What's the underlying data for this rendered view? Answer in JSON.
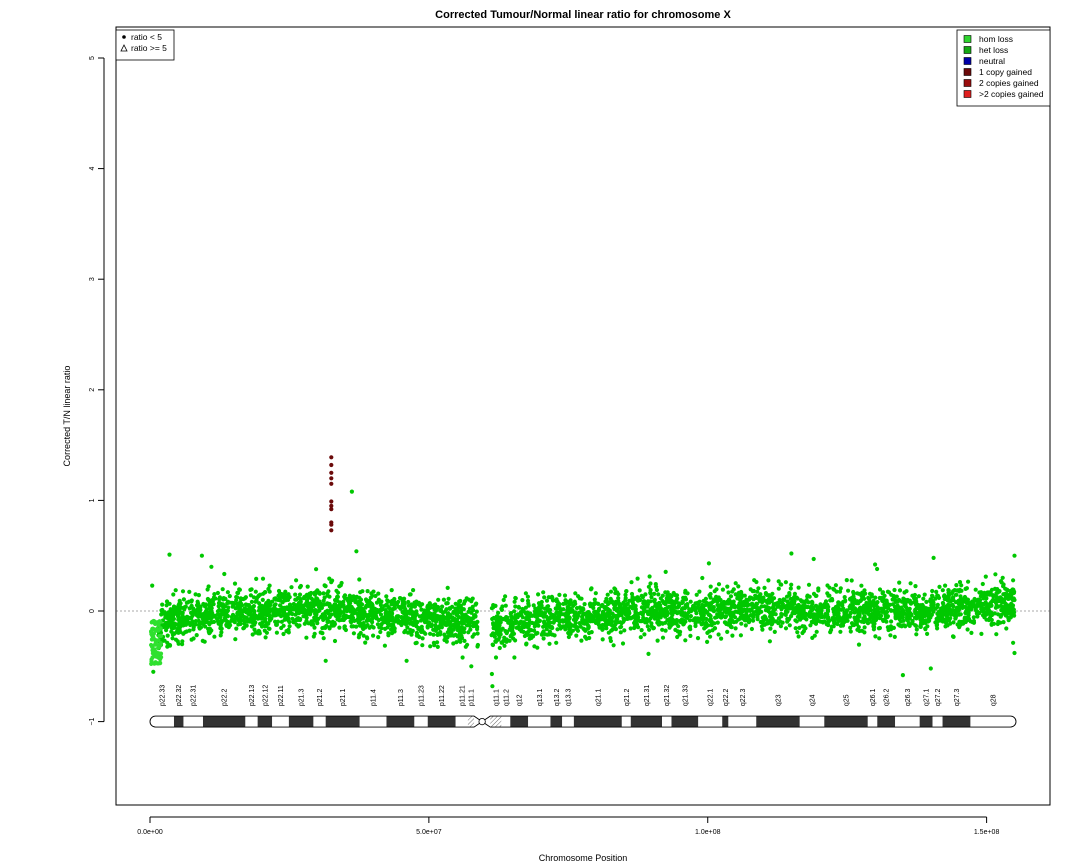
{
  "chart_data": {
    "type": "scatter",
    "title": "Corrected Tumour/Normal linear ratio for chromosome  X",
    "xlabel": "Chromosome Position",
    "ylabel": "Corrected T/N linear ratio",
    "xlim": [
      0,
      155270560
    ],
    "ylim": [
      -1.75,
      5.35
    ],
    "x_ticks": [
      0,
      50000000,
      100000000,
      150000000
    ],
    "x_tick_labels": [
      "0.0e+00",
      "5.0e+07",
      "1.0e+08",
      "1.5e+08"
    ],
    "y_ticks": [
      -1,
      0,
      1,
      2,
      3,
      4,
      5
    ],
    "y_tick_labels": [
      "−1",
      "0",
      "1",
      "2",
      "3",
      "4",
      "5"
    ],
    "reference_line_y": 0,
    "grid": false,
    "shape_legend": {
      "position": "top-left",
      "entries": [
        {
          "symbol": "dot",
          "label": "ratio < 5"
        },
        {
          "symbol": "triangle",
          "label": "ratio >= 5"
        }
      ]
    },
    "legend": {
      "position": "top-right",
      "entries": [
        {
          "label": "hom loss",
          "color": "#2fd42f"
        },
        {
          "label": "het loss",
          "color": "#14a814"
        },
        {
          "label": "neutral",
          "color": "#0000a8"
        },
        {
          "label": "1 copy gained",
          "color": "#6b0a0a"
        },
        {
          "label": "2 copies gained",
          "color": "#9a0d0d"
        },
        {
          "label": ">2 copies gained",
          "color": "#e01f1f"
        }
      ]
    },
    "series": [
      {
        "category": "het loss",
        "color": "#00c800",
        "trend": [
          [
            0,
            -0.35
          ],
          [
            1000000,
            -0.3
          ],
          [
            2000000,
            -0.15
          ],
          [
            3000000,
            -0.1
          ],
          [
            8000000,
            -0.05
          ],
          [
            14000000,
            0.0
          ],
          [
            20000000,
            0.0
          ],
          [
            26000000,
            0.02
          ],
          [
            32000000,
            0.02
          ],
          [
            36000000,
            0.0
          ],
          [
            42000000,
            -0.05
          ],
          [
            48000000,
            -0.05
          ],
          [
            54000000,
            -0.08
          ],
          [
            58000000,
            -0.1
          ],
          [
            62000000,
            -0.15
          ],
          [
            66000000,
            -0.1
          ],
          [
            72000000,
            -0.05
          ],
          [
            80000000,
            -0.05
          ],
          [
            90000000,
            0.0
          ],
          [
            100000000,
            0.0
          ],
          [
            110000000,
            0.02
          ],
          [
            120000000,
            0.0
          ],
          [
            130000000,
            0.0
          ],
          [
            140000000,
            0.0
          ],
          [
            150000000,
            0.05
          ],
          [
            155000000,
            0.08
          ]
        ],
        "spread": 0.1,
        "gaps": [
          [
            58800000,
            61200000
          ]
        ],
        "outliers": [
          [
            400000,
            0.23
          ],
          [
            600000,
            -0.55
          ],
          [
            3500000,
            0.51
          ],
          [
            9300000,
            0.5
          ],
          [
            11000000,
            0.4
          ],
          [
            36200000,
            1.08
          ],
          [
            37000000,
            0.54
          ],
          [
            46000000,
            -0.45
          ],
          [
            31500000,
            -0.45
          ],
          [
            57600000,
            -0.5
          ],
          [
            61300000,
            -0.57
          ],
          [
            61400000,
            -0.68
          ],
          [
            100200000,
            0.43
          ],
          [
            115000000,
            0.52
          ],
          [
            119000000,
            0.47
          ],
          [
            130000000,
            0.42
          ],
          [
            135000000,
            -0.58
          ],
          [
            140000000,
            -0.52
          ],
          [
            140500000,
            0.48
          ],
          [
            155000000,
            0.5
          ],
          [
            155000000,
            -0.38
          ]
        ]
      },
      {
        "category": "hom loss",
        "color": "#2fe02f",
        "x_range": [
          50000,
          2000000
        ],
        "y_range": [
          -0.48,
          -0.08
        ]
      },
      {
        "category": "1 copy gained",
        "color": "#6b0a0a",
        "points": [
          [
            32500000,
            1.39
          ],
          [
            32500000,
            1.32
          ],
          [
            32500000,
            1.25
          ],
          [
            32500000,
            1.2
          ],
          [
            32500000,
            1.15
          ],
          [
            32500000,
            0.99
          ],
          [
            32500000,
            0.95
          ],
          [
            32500000,
            0.92
          ],
          [
            32500000,
            0.8
          ],
          [
            32500000,
            0.78
          ],
          [
            32500000,
            0.73
          ]
        ]
      }
    ],
    "ideogram": {
      "y": -1,
      "centromere": [
        58100000,
        61000000
      ],
      "bands": [
        {
          "name": "p22.33",
          "start": 0,
          "end": 4300000,
          "stain": "white"
        },
        {
          "name": "p22.32",
          "start": 4300000,
          "end": 6000000,
          "stain": "dark"
        },
        {
          "name": "p22.31",
          "start": 6000000,
          "end": 9500000,
          "stain": "white"
        },
        {
          "name": "p22.2",
          "start": 9500000,
          "end": 17100000,
          "stain": "dark"
        },
        {
          "name": "p22.13",
          "start": 17100000,
          "end": 19300000,
          "stain": "white"
        },
        {
          "name": "p22.12",
          "start": 19300000,
          "end": 21900000,
          "stain": "dark"
        },
        {
          "name": "p22.11",
          "start": 21900000,
          "end": 24900000,
          "stain": "white"
        },
        {
          "name": "p21.3",
          "start": 24900000,
          "end": 29300000,
          "stain": "dark"
        },
        {
          "name": "p21.2",
          "start": 29300000,
          "end": 31500000,
          "stain": "white"
        },
        {
          "name": "p21.1",
          "start": 31500000,
          "end": 37600000,
          "stain": "dark"
        },
        {
          "name": "p11.4",
          "start": 37600000,
          "end": 42400000,
          "stain": "white"
        },
        {
          "name": "p11.3",
          "start": 42400000,
          "end": 47400000,
          "stain": "dark"
        },
        {
          "name": "p11.23",
          "start": 47400000,
          "end": 49800000,
          "stain": "white"
        },
        {
          "name": "p11.22",
          "start": 49800000,
          "end": 54800000,
          "stain": "dark"
        },
        {
          "name": "p11.21",
          "start": 54800000,
          "end": 57000000,
          "stain": "white"
        },
        {
          "name": "p11.1",
          "start": 57000000,
          "end": 58100000,
          "stain": "stripe"
        },
        {
          "name": "q11.1",
          "start": 61000000,
          "end": 63000000,
          "stain": "stripe"
        },
        {
          "name": "q11.2",
          "start": 63000000,
          "end": 64600000,
          "stain": "white"
        },
        {
          "name": "q12",
          "start": 64600000,
          "end": 67800000,
          "stain": "dark"
        },
        {
          "name": "q13.1",
          "start": 67800000,
          "end": 71800000,
          "stain": "white"
        },
        {
          "name": "q13.2",
          "start": 71800000,
          "end": 73900000,
          "stain": "dark"
        },
        {
          "name": "q13.3",
          "start": 73900000,
          "end": 76000000,
          "stain": "white"
        },
        {
          "name": "q21.1",
          "start": 76000000,
          "end": 84600000,
          "stain": "dark"
        },
        {
          "name": "q21.2",
          "start": 84600000,
          "end": 86200000,
          "stain": "white"
        },
        {
          "name": "q21.31",
          "start": 86200000,
          "end": 91800000,
          "stain": "dark"
        },
        {
          "name": "q21.32",
          "start": 91800000,
          "end": 93500000,
          "stain": "white"
        },
        {
          "name": "q21.33",
          "start": 93500000,
          "end": 98300000,
          "stain": "dark"
        },
        {
          "name": "q22.1",
          "start": 98300000,
          "end": 102600000,
          "stain": "white"
        },
        {
          "name": "q22.2",
          "start": 102600000,
          "end": 103700000,
          "stain": "dark"
        },
        {
          "name": "q22.3",
          "start": 103700000,
          "end": 108700000,
          "stain": "white"
        },
        {
          "name": "q23",
          "start": 108700000,
          "end": 116500000,
          "stain": "dark"
        },
        {
          "name": "q24",
          "start": 116500000,
          "end": 120900000,
          "stain": "white"
        },
        {
          "name": "q25",
          "start": 120900000,
          "end": 128700000,
          "stain": "dark"
        },
        {
          "name": "q26.1",
          "start": 128700000,
          "end": 130400000,
          "stain": "white"
        },
        {
          "name": "q26.2",
          "start": 130400000,
          "end": 133600000,
          "stain": "dark"
        },
        {
          "name": "q26.3",
          "start": 133600000,
          "end": 138000000,
          "stain": "white"
        },
        {
          "name": "q27.1",
          "start": 138000000,
          "end": 140300000,
          "stain": "dark"
        },
        {
          "name": "q27.2",
          "start": 140300000,
          "end": 142100000,
          "stain": "white"
        },
        {
          "name": "q27.3",
          "start": 142100000,
          "end": 147100000,
          "stain": "dark"
        },
        {
          "name": "q28",
          "start": 147100000,
          "end": 155270560,
          "stain": "white"
        }
      ]
    }
  }
}
